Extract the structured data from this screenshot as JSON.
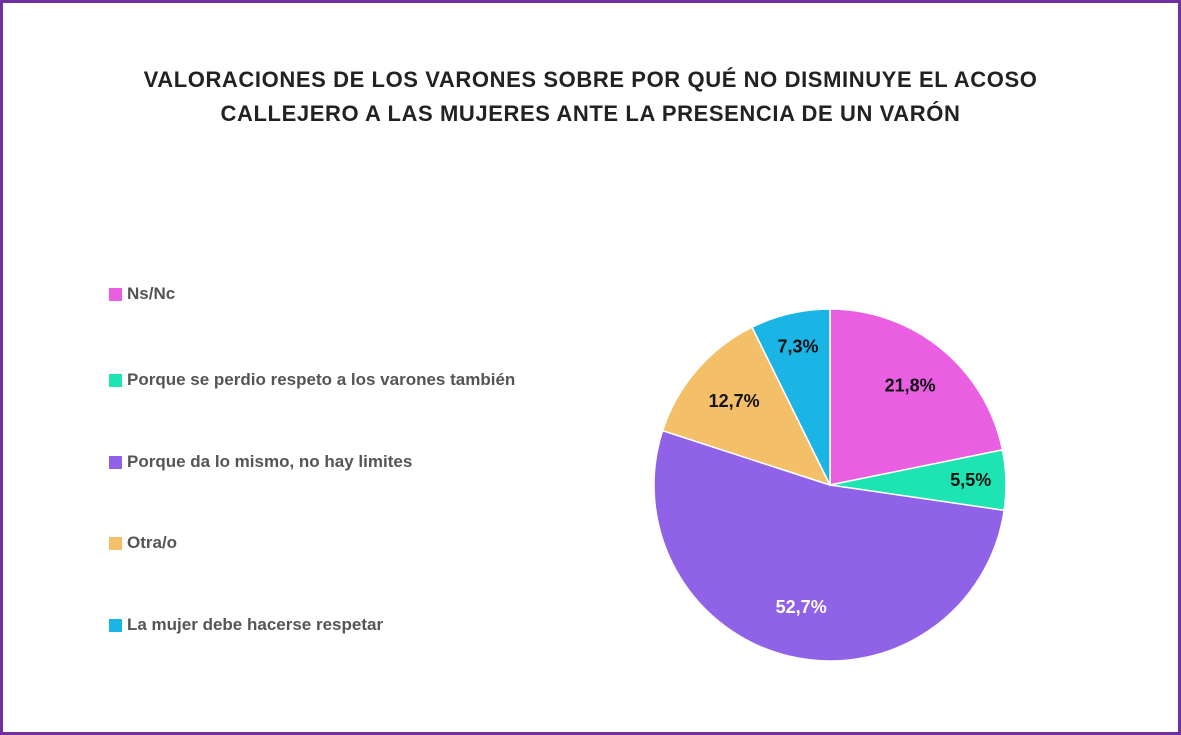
{
  "chart_data": {
    "type": "pie",
    "title": "VALORACIONES DE LOS VARONES SOBRE POR QUÉ NO DISMINUYE EL ACOSO CALLEJERO A LAS MUJERES ANTE LA PRESENCIA DE UN VARÓN",
    "categories": [
      "Ns/Nc",
      "Porque se perdio respeto a los varones también",
      "Porque da lo mismo, no hay limites",
      "Otra/o",
      "La mujer debe hacerse respetar"
    ],
    "values": [
      21.8,
      5.5,
      52.7,
      12.7,
      7.3
    ],
    "value_labels": [
      "21,8%",
      "5,5%",
      "52,7%",
      "12,7%",
      "7,3%"
    ],
    "colors": [
      "#ea5fe2",
      "#1ee3b3",
      "#9062e8",
      "#f4bf69",
      "#1ab4e5"
    ],
    "label_colors": [
      "#111111",
      "#111111",
      "#ffffff",
      "#111111",
      "#111111"
    ],
    "legend": "left"
  }
}
